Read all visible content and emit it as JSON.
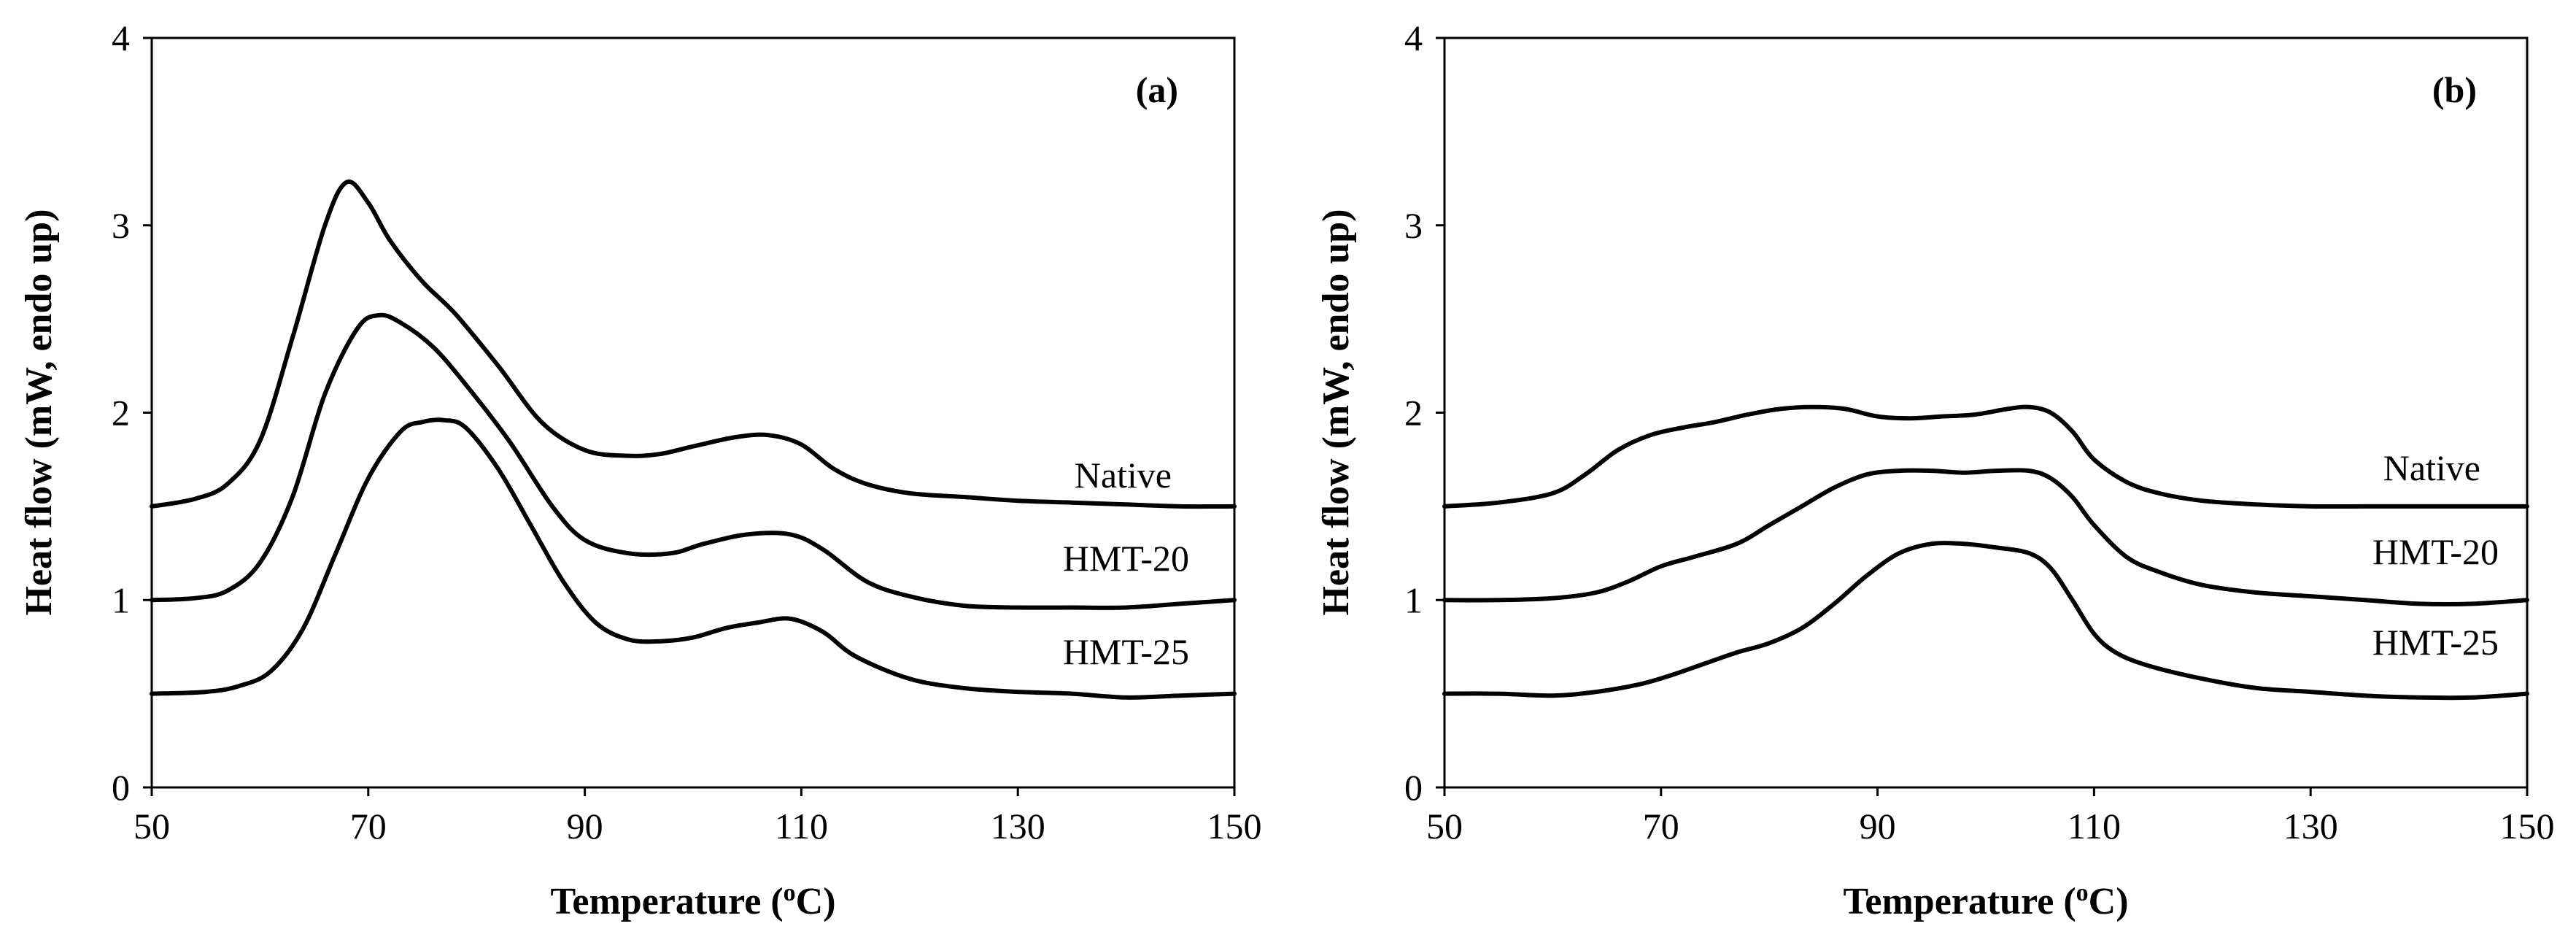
{
  "chart_data": [
    {
      "type": "line",
      "panel_label": "(a)",
      "xlabel": "Temperature (",
      "xlabel_sup": "o",
      "xlabel_suffix": "C)",
      "ylabel": "Heat flow (mW, endo up)",
      "xlim": [
        50,
        150
      ],
      "ylim": [
        0,
        4
      ],
      "xticks": [
        "50",
        "70",
        "90",
        "110",
        "130",
        "150"
      ],
      "yticks": [
        "0",
        "1",
        "2",
        "3",
        "4"
      ],
      "series": [
        {
          "name": "Native",
          "x": [
            50,
            54,
            57,
            60,
            63,
            66,
            68,
            70,
            72,
            75,
            78,
            82,
            86,
            90,
            94,
            97,
            100,
            104,
            107,
            110,
            113,
            116,
            120,
            125,
            130,
            135,
            140,
            145,
            150
          ],
          "y": [
            1.5,
            1.54,
            1.62,
            1.85,
            2.4,
            3.0,
            3.23,
            3.12,
            2.92,
            2.7,
            2.53,
            2.25,
            1.95,
            1.8,
            1.77,
            1.78,
            1.82,
            1.87,
            1.88,
            1.83,
            1.7,
            1.62,
            1.57,
            1.55,
            1.53,
            1.52,
            1.51,
            1.5,
            1.5
          ]
        },
        {
          "name": "HMT-20",
          "x": [
            50,
            54,
            57,
            60,
            63,
            66,
            69,
            71,
            73,
            76,
            79,
            83,
            87,
            90,
            94,
            98,
            101,
            105,
            109,
            112,
            116,
            120,
            125,
            130,
            135,
            140,
            145,
            150
          ],
          "y": [
            1.0,
            1.01,
            1.05,
            1.2,
            1.55,
            2.1,
            2.45,
            2.52,
            2.48,
            2.35,
            2.15,
            1.85,
            1.5,
            1.32,
            1.25,
            1.25,
            1.3,
            1.35,
            1.35,
            1.27,
            1.1,
            1.02,
            0.97,
            0.96,
            0.96,
            0.96,
            0.98,
            1.0
          ]
        },
        {
          "name": "HMT-25",
          "x": [
            50,
            55,
            58,
            61,
            64,
            67,
            70,
            73,
            75,
            77,
            79,
            82,
            85,
            88,
            91,
            94,
            97,
            100,
            103,
            106,
            109,
            112,
            115,
            120,
            125,
            130,
            135,
            140,
            145,
            150
          ],
          "y": [
            0.5,
            0.51,
            0.54,
            0.62,
            0.85,
            1.25,
            1.65,
            1.9,
            1.95,
            1.96,
            1.92,
            1.7,
            1.4,
            1.1,
            0.88,
            0.79,
            0.78,
            0.8,
            0.85,
            0.88,
            0.9,
            0.83,
            0.7,
            0.58,
            0.53,
            0.51,
            0.5,
            0.48,
            0.49,
            0.5
          ]
        }
      ]
    },
    {
      "type": "line",
      "panel_label": "(b)",
      "xlabel": "Temperature (",
      "xlabel_sup": "o",
      "xlabel_suffix": "C)",
      "ylabel": "Heat flow (mW, endo up)",
      "xlim": [
        50,
        150
      ],
      "ylim": [
        0,
        4
      ],
      "xticks": [
        "50",
        "70",
        "90",
        "110",
        "130",
        "150"
      ],
      "yticks": [
        "0",
        "1",
        "2",
        "3",
        "4"
      ],
      "series": [
        {
          "name": "Native",
          "x": [
            50,
            55,
            60,
            63,
            66,
            69,
            72,
            75,
            78,
            81,
            84,
            87,
            90,
            93,
            96,
            99,
            102,
            104,
            106,
            108,
            110,
            113,
            116,
            120,
            125,
            130,
            135,
            140,
            145,
            150
          ],
          "y": [
            1.5,
            1.52,
            1.57,
            1.67,
            1.8,
            1.88,
            1.92,
            1.95,
            1.99,
            2.02,
            2.03,
            2.02,
            1.98,
            1.97,
            1.98,
            1.99,
            2.02,
            2.03,
            2.0,
            1.9,
            1.75,
            1.63,
            1.57,
            1.53,
            1.51,
            1.5,
            1.5,
            1.5,
            1.5,
            1.5
          ]
        },
        {
          "name": "HMT-20",
          "x": [
            50,
            55,
            60,
            64,
            67,
            70,
            73,
            77,
            80,
            83,
            86,
            89,
            92,
            95,
            98,
            101,
            104,
            106,
            108,
            110,
            113,
            116,
            120,
            125,
            130,
            135,
            140,
            145,
            150
          ],
          "y": [
            1.0,
            1.0,
            1.01,
            1.04,
            1.1,
            1.18,
            1.23,
            1.3,
            1.4,
            1.5,
            1.6,
            1.67,
            1.69,
            1.69,
            1.68,
            1.69,
            1.69,
            1.65,
            1.55,
            1.4,
            1.23,
            1.15,
            1.08,
            1.04,
            1.02,
            1.0,
            0.98,
            0.98,
            1.0
          ]
        },
        {
          "name": "HMT-25",
          "x": [
            50,
            55,
            60,
            64,
            68,
            71,
            74,
            77,
            80,
            83,
            86,
            89,
            92,
            95,
            98,
            101,
            104,
            106,
            108,
            110,
            112,
            115,
            120,
            125,
            130,
            135,
            140,
            145,
            150
          ],
          "y": [
            0.5,
            0.5,
            0.49,
            0.51,
            0.55,
            0.6,
            0.66,
            0.72,
            0.77,
            0.85,
            0.98,
            1.13,
            1.25,
            1.3,
            1.3,
            1.28,
            1.25,
            1.17,
            1.0,
            0.82,
            0.72,
            0.65,
            0.58,
            0.53,
            0.51,
            0.49,
            0.48,
            0.48,
            0.5
          ]
        }
      ]
    }
  ]
}
